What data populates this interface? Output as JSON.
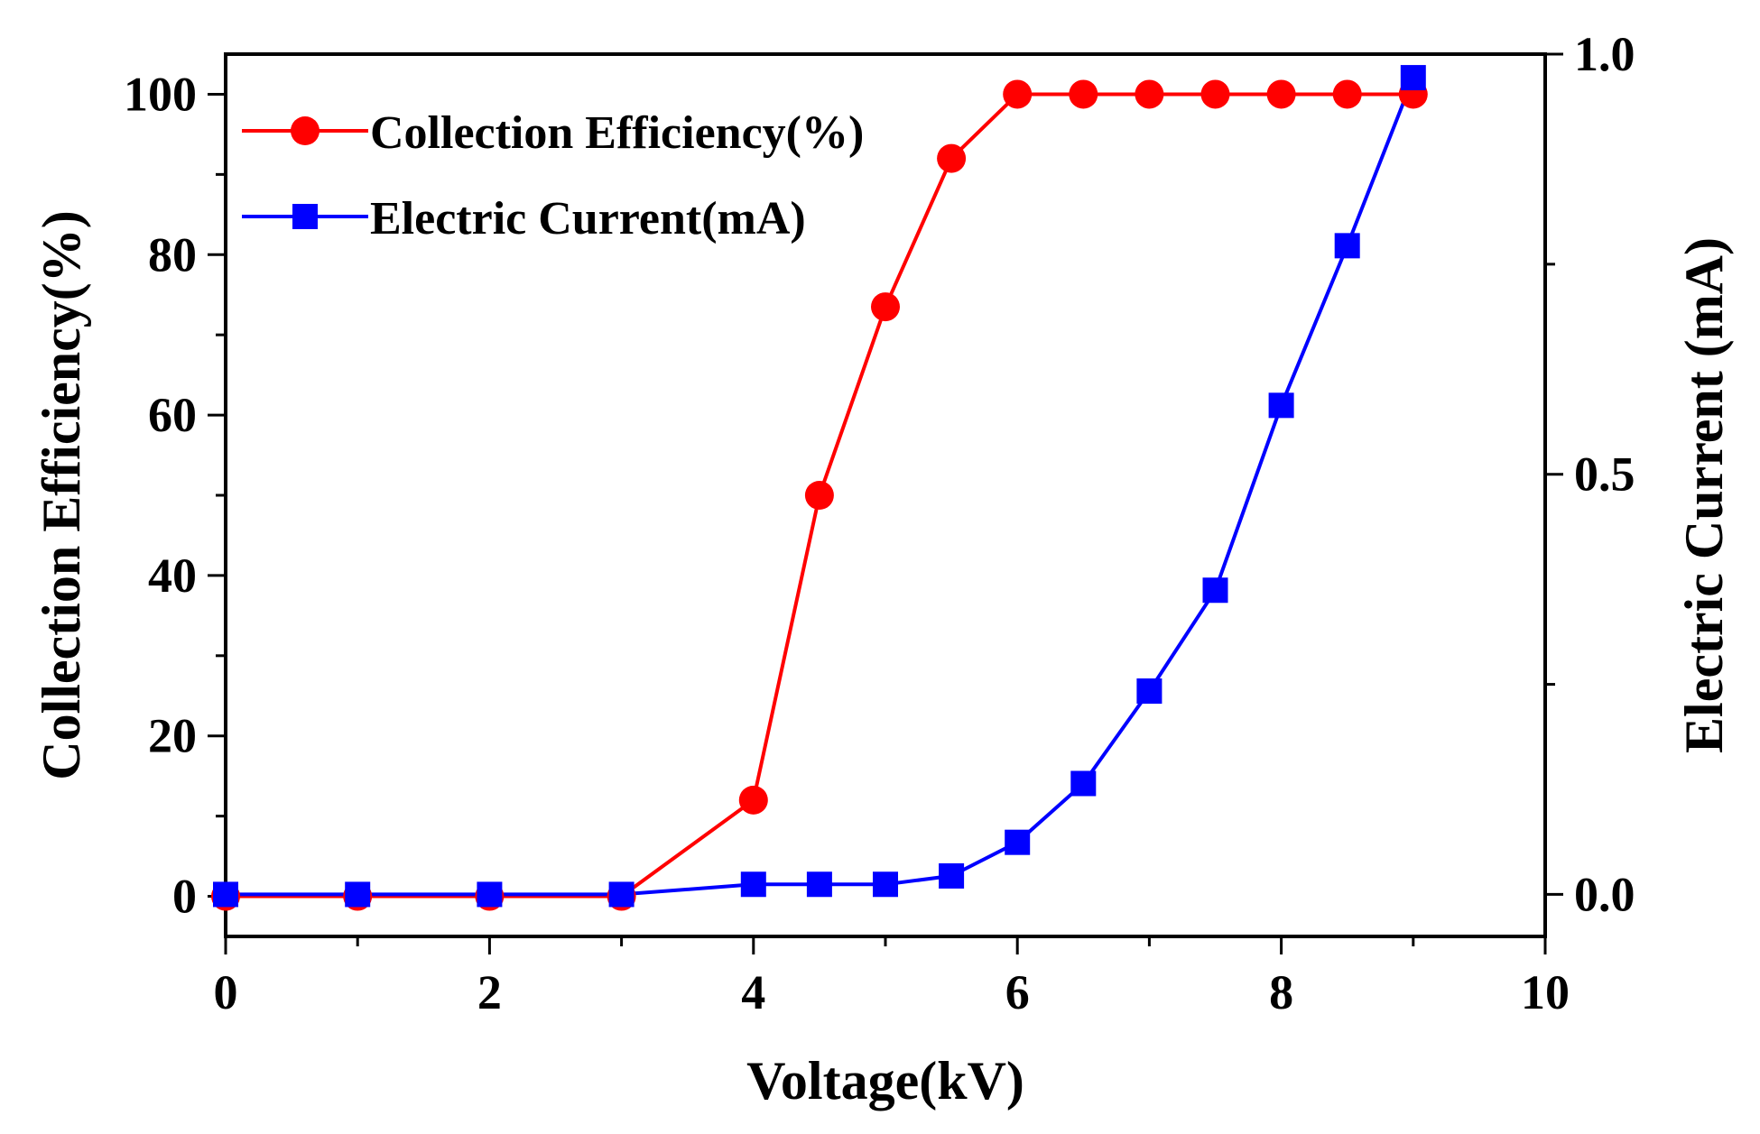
{
  "chart_data": {
    "type": "line",
    "x": [
      0,
      1,
      2,
      3,
      4,
      4.5,
      5,
      5.5,
      6,
      6.5,
      7,
      7.5,
      8,
      8.5,
      9
    ],
    "series": [
      {
        "name": "Collection Efficiency(%)",
        "axis": "left",
        "marker": "circle",
        "color": "#ff0000",
        "values": [
          0,
          0,
          0,
          0,
          12,
          50,
          73.5,
          92,
          100,
          100,
          100,
          100,
          100,
          100,
          100
        ]
      },
      {
        "name": "Electric Current(mA)",
        "axis": "right",
        "marker": "square",
        "color": "#0000ff",
        "values": [
          0,
          0,
          0,
          0,
          0.012,
          0.012,
          0.012,
          0.022,
          0.062,
          0.132,
          0.242,
          0.362,
          0.582,
          0.772,
          0.972
        ]
      }
    ],
    "xlabel": "Voltage(kV)",
    "ylabel_left": "Collection Efficiency(%)",
    "ylabel_right": "Electric Current (mA)",
    "xlim": [
      0,
      10
    ],
    "ylim_left": [
      -5,
      105
    ],
    "ylim_right": [
      -0.05,
      1.0
    ],
    "xticks": [
      0,
      2,
      4,
      6,
      8,
      10
    ],
    "xtick_labels": [
      "0",
      "2",
      "4",
      "6",
      "8",
      "10"
    ],
    "yticks_left": [
      0,
      20,
      40,
      60,
      80,
      100
    ],
    "ytick_labels_left": [
      "0",
      "20",
      "40",
      "60",
      "80",
      "100"
    ],
    "yticks_right": [
      0.0,
      0.5,
      1.0
    ],
    "ytick_labels_right": [
      "0.0",
      "0.5",
      "1.0"
    ],
    "legend_position": "top-left",
    "grid": false
  }
}
